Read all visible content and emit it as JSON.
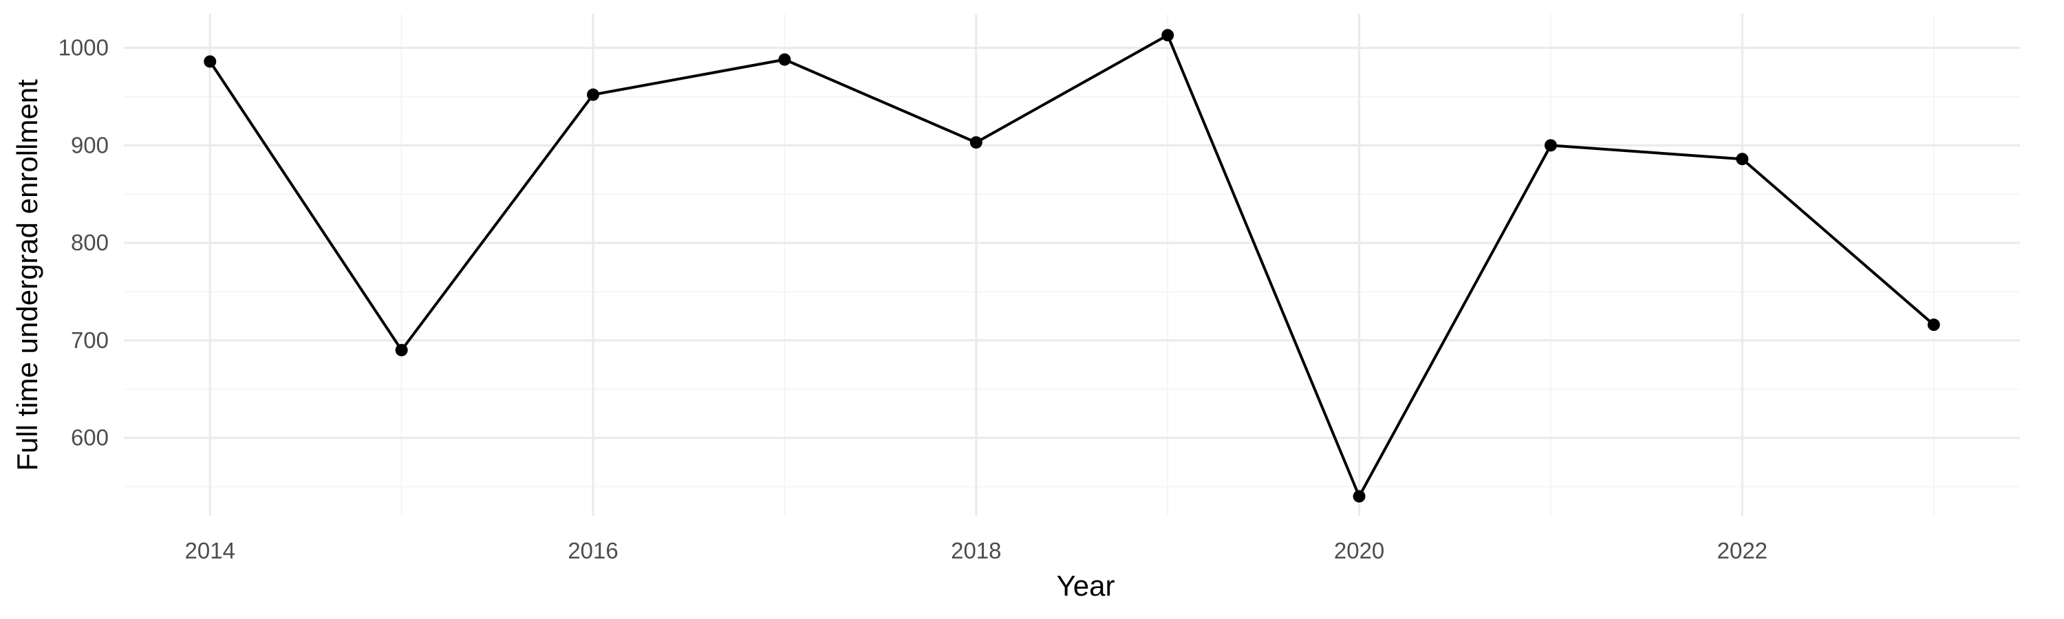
{
  "chart_data": {
    "type": "line",
    "title": "",
    "xlabel": "Year",
    "ylabel": "Full time undergrad enrollment",
    "x": [
      2014,
      2015,
      2016,
      2017,
      2018,
      2019,
      2020,
      2021,
      2022,
      2023
    ],
    "series": [
      {
        "values": [
          986,
          690,
          952,
          988,
          903,
          1013,
          540,
          900,
          886,
          716
        ]
      }
    ],
    "xlim": [
      2013.55,
      2023.45
    ],
    "ylim": [
      520,
      1035
    ],
    "x_ticks": [
      2014,
      2016,
      2018,
      2020,
      2022
    ],
    "x_tick_labels": [
      "2014",
      "2016",
      "2018",
      "2020",
      "2022"
    ],
    "y_ticks": [
      600,
      700,
      800,
      900,
      1000
    ],
    "y_tick_labels": [
      "600",
      "700",
      "800",
      "900",
      "1000"
    ],
    "grid": true,
    "legend": "none",
    "line_color": "#000000",
    "grid_color": "#ebebeb"
  }
}
